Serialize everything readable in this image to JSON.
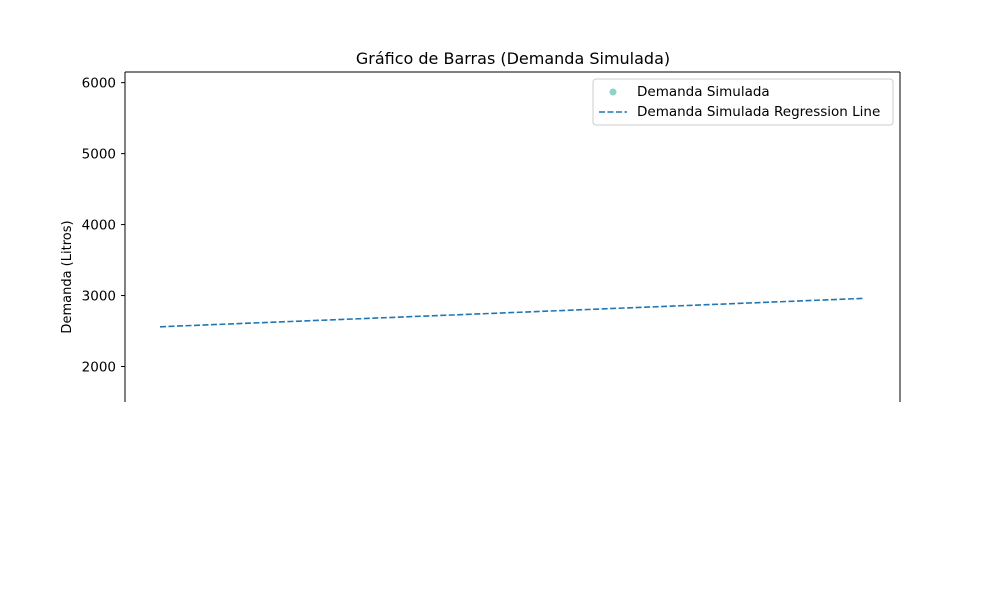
{
  "chart_data": {
    "type": "line",
    "title": "Gráfico de Barras (Demanda Simulada)",
    "xlabel": "",
    "ylabel": "Demanda (Litros)",
    "ylim": [
      1500,
      6150
    ],
    "xlim": [
      0,
      1
    ],
    "y_ticks": [
      2000,
      3000,
      4000,
      5000,
      6000
    ],
    "grid": false,
    "legend_placement": "top-right",
    "series": [
      {
        "name": "Demanda Simulada",
        "type": "scatter",
        "color": "#8dd3c7",
        "points": []
      },
      {
        "name": "Demanda Simulada Regression Line",
        "type": "line",
        "style": "dashed",
        "color": "#1f77b4",
        "x": [
          0.0,
          1.0
        ],
        "y": [
          2560,
          2960
        ]
      }
    ]
  }
}
